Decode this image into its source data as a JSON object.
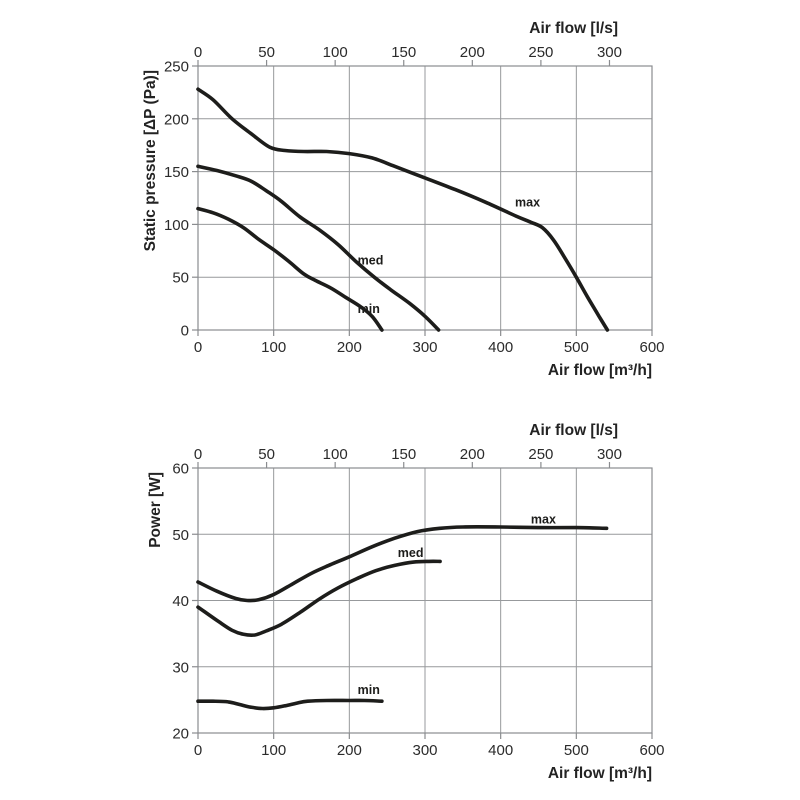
{
  "page": {
    "background": "#ffffff",
    "text_color": "#2b2b2b",
    "grid_color": "#97999c",
    "curve_color": "#1d1d1b"
  },
  "chart_data": [
    {
      "type": "line",
      "name": "static-pressure-chart",
      "grid": true,
      "legend_position": "inline-labels",
      "top_axis": {
        "label": "Air flow [l/s]",
        "ticks": [
          0,
          50,
          100,
          150,
          200,
          250,
          300
        ],
        "min": 0,
        "max": 331
      },
      "bottom_axis": {
        "label": "Air flow [m³/h]",
        "ticks": [
          0,
          100,
          200,
          300,
          400,
          500,
          600
        ],
        "min": 0,
        "max": 600
      },
      "y_axis": {
        "label": "Static pressure [ΔP (Pa)]",
        "ticks": [
          0,
          50,
          100,
          150,
          200,
          250
        ],
        "min": 0,
        "max": 250
      },
      "series": [
        {
          "name": "max",
          "label_at": [
            419,
            117
          ],
          "points": [
            [
              0,
              228
            ],
            [
              20,
              218
            ],
            [
              45,
              200
            ],
            [
              70,
              186
            ],
            [
              95,
              173
            ],
            [
              115,
              170
            ],
            [
              140,
              169
            ],
            [
              170,
              169
            ],
            [
              200,
              167
            ],
            [
              230,
              163
            ],
            [
              260,
              155
            ],
            [
              300,
              144
            ],
            [
              340,
              133
            ],
            [
              380,
              121
            ],
            [
              420,
              108
            ],
            [
              440,
              102
            ],
            [
              455,
              97
            ],
            [
              470,
              85
            ],
            [
              485,
              68
            ],
            [
              500,
              50
            ],
            [
              515,
              31
            ],
            [
              530,
              13
            ],
            [
              541,
              0
            ]
          ]
        },
        {
          "name": "med",
          "label_at": [
            211,
            62
          ],
          "points": [
            [
              0,
              155
            ],
            [
              25,
              151
            ],
            [
              50,
              146
            ],
            [
              70,
              141
            ],
            [
              90,
              132
            ],
            [
              110,
              122
            ],
            [
              135,
              107
            ],
            [
              160,
              95
            ],
            [
              185,
              81
            ],
            [
              210,
              64
            ],
            [
              233,
              50
            ],
            [
              255,
              38
            ],
            [
              280,
              25
            ],
            [
              300,
              13
            ],
            [
              318,
              0
            ]
          ]
        },
        {
          "name": "min",
          "label_at": [
            211,
            16
          ],
          "points": [
            [
              0,
              115
            ],
            [
              20,
              111
            ],
            [
              40,
              105
            ],
            [
              60,
              97
            ],
            [
              80,
              86
            ],
            [
              100,
              76
            ],
            [
              120,
              65
            ],
            [
              140,
              53
            ],
            [
              155,
              47
            ],
            [
              175,
              40
            ],
            [
              195,
              31
            ],
            [
              215,
              22
            ],
            [
              230,
              13
            ],
            [
              243,
              0
            ]
          ]
        }
      ]
    },
    {
      "type": "line",
      "name": "power-chart",
      "grid": true,
      "legend_position": "inline-labels",
      "top_axis": {
        "label": "Air flow [l/s]",
        "ticks": [
          0,
          50,
          100,
          150,
          200,
          250,
          300
        ],
        "min": 0,
        "max": 331
      },
      "bottom_axis": {
        "label": "Air flow [m³/h]",
        "ticks": [
          0,
          100,
          200,
          300,
          400,
          500,
          600
        ],
        "min": 0,
        "max": 600
      },
      "y_axis": {
        "label": "Power [W]",
        "ticks": [
          20,
          30,
          40,
          50,
          60
        ],
        "min": 20,
        "max": 60
      },
      "series": [
        {
          "name": "max",
          "label_at": [
            440,
            51.6
          ],
          "points": [
            [
              0,
              42.8
            ],
            [
              25,
              41.4
            ],
            [
              50,
              40.3
            ],
            [
              65,
              40
            ],
            [
              80,
              40.1
            ],
            [
              100,
              40.9
            ],
            [
              125,
              42.5
            ],
            [
              150,
              44.1
            ],
            [
              175,
              45.4
            ],
            [
              200,
              46.6
            ],
            [
              230,
              48.1
            ],
            [
              260,
              49.4
            ],
            [
              290,
              50.4
            ],
            [
              320,
              50.9
            ],
            [
              350,
              51.1
            ],
            [
              400,
              51.1
            ],
            [
              450,
              51
            ],
            [
              500,
              51
            ],
            [
              540,
              50.9
            ]
          ]
        },
        {
          "name": "med",
          "label_at": [
            264,
            46.6
          ],
          "points": [
            [
              0,
              39
            ],
            [
              25,
              37
            ],
            [
              45,
              35.5
            ],
            [
              60,
              34.9
            ],
            [
              75,
              34.8
            ],
            [
              90,
              35.4
            ],
            [
              110,
              36.4
            ],
            [
              135,
              38.2
            ],
            [
              160,
              40.2
            ],
            [
              185,
              41.9
            ],
            [
              210,
              43.3
            ],
            [
              235,
              44.5
            ],
            [
              260,
              45.3
            ],
            [
              285,
              45.8
            ],
            [
              305,
              45.9
            ],
            [
              320,
              45.9
            ]
          ]
        },
        {
          "name": "min",
          "label_at": [
            211,
            25.9
          ],
          "points": [
            [
              0,
              24.8
            ],
            [
              20,
              24.8
            ],
            [
              40,
              24.7
            ],
            [
              55,
              24.3
            ],
            [
              70,
              23.9
            ],
            [
              85,
              23.7
            ],
            [
              100,
              23.8
            ],
            [
              115,
              24.1
            ],
            [
              130,
              24.5
            ],
            [
              145,
              24.8
            ],
            [
              170,
              24.9
            ],
            [
              200,
              24.9
            ],
            [
              220,
              24.9
            ],
            [
              243,
              24.8
            ]
          ]
        }
      ]
    }
  ]
}
